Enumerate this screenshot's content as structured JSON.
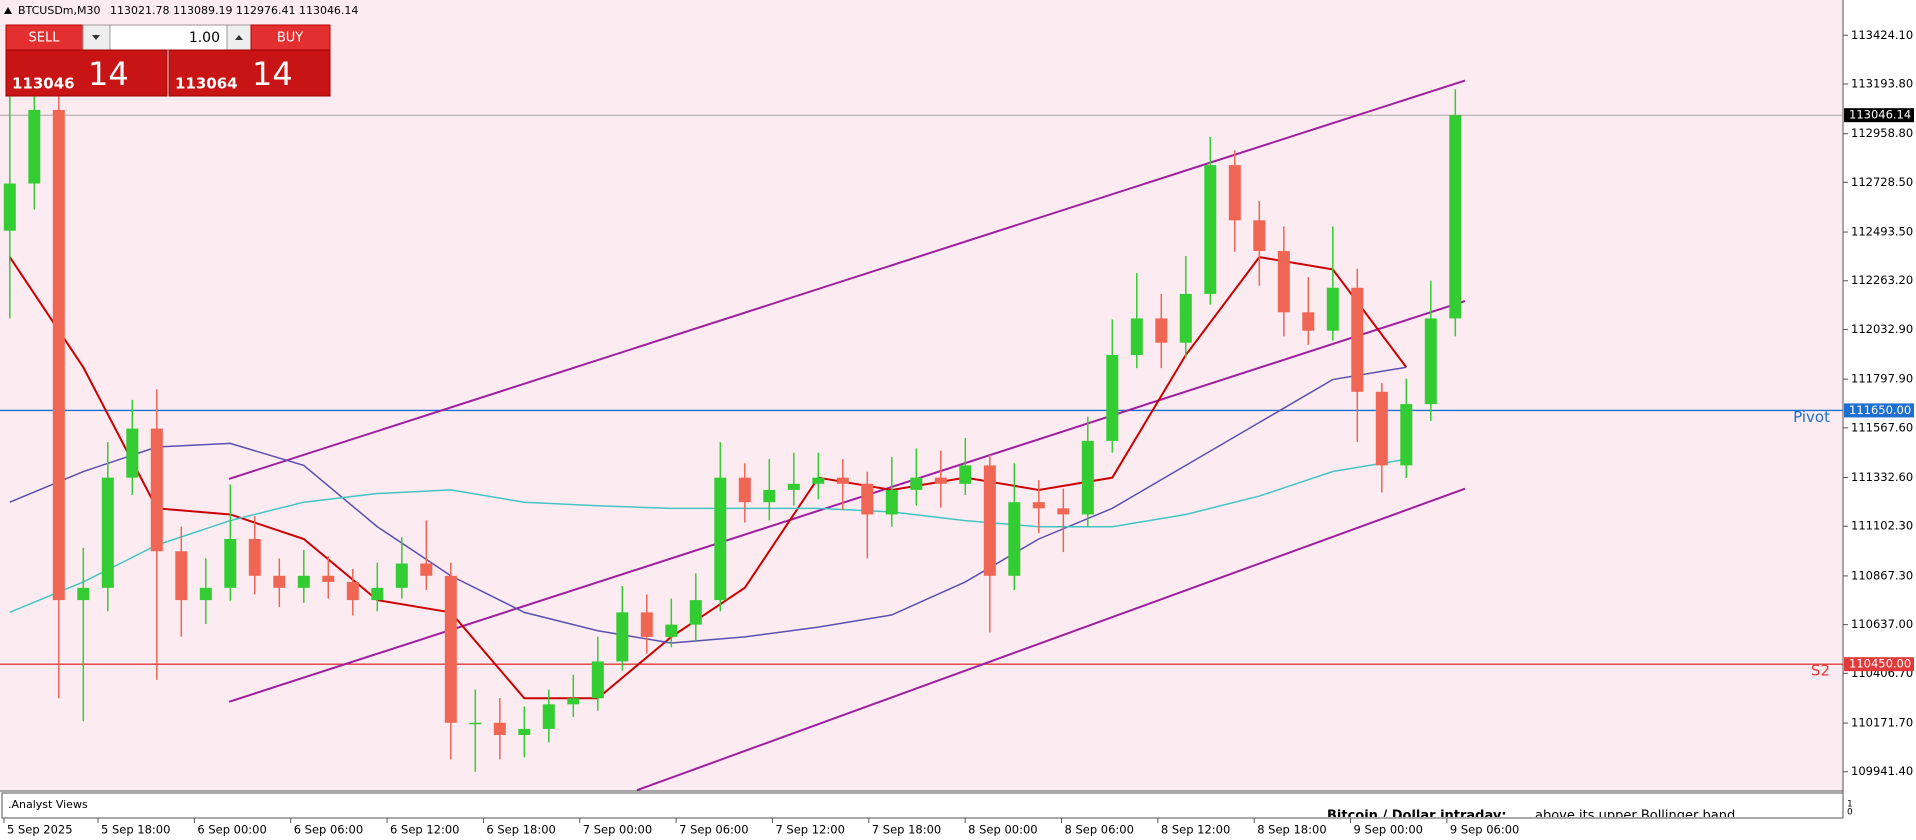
{
  "header": {
    "symbol": "BTCUSDm,M30",
    "quote": "113021.78 113089.19 112976.41 113046.14"
  },
  "trade_panel": {
    "sell": "SELL",
    "buy": "BUY",
    "lot": "1.00",
    "sell_price": "113046",
    "sell_pips": "14",
    "buy_price": "113064",
    "buy_pips": "14"
  },
  "chart_data": {
    "type": "candlestick",
    "background": "#fcecf1",
    "up_color": "#33cc33",
    "down_color": "#f06655",
    "x_labels": [
      "5 Sep 2025",
      "5 Sep 18:00",
      "6 Sep 00:00",
      "6 Sep 06:00",
      "6 Sep 12:00",
      "6 Sep 18:00",
      "7 Sep 00:00",
      "7 Sep 06:00",
      "7 Sep 12:00",
      "7 Sep 18:00",
      "8 Sep 00:00",
      "8 Sep 06:00",
      "8 Sep 12:00",
      "8 Sep 18:00",
      "9 Sep 00:00",
      "9 Sep 06:00"
    ],
    "ylim": [
      109855,
      113579
    ],
    "yticks": [
      {
        "value": 113424.1,
        "label": "113424.10"
      },
      {
        "value": 113193.8,
        "label": "113193.80"
      },
      {
        "value": 112958.8,
        "label": "112958.80"
      },
      {
        "value": 112728.5,
        "label": "112728.50"
      },
      {
        "value": 112493.5,
        "label": "112493.50"
      },
      {
        "value": 112263.2,
        "label": "112263.20"
      },
      {
        "value": 112032.9,
        "label": "112032.90"
      },
      {
        "value": 111797.9,
        "label": "111797.90"
      },
      {
        "value": 111567.6,
        "label": "111567.60"
      },
      {
        "value": 111332.6,
        "label": "111332.60"
      },
      {
        "value": 111102.3,
        "label": "111102.30"
      },
      {
        "value": 110867.3,
        "label": "110867.30"
      },
      {
        "value": 110637,
        "label": "110637.00"
      },
      {
        "value": 110406.7,
        "label": "110406.70"
      },
      {
        "value": 110171.7,
        "label": "110171.70"
      },
      {
        "value": 109941.4,
        "label": "109941.40"
      }
    ],
    "open": [
      112500,
      112723,
      113071,
      110753,
      110811,
      111332,
      111564,
      110984,
      110753,
      110811,
      111042,
      110868,
      110811,
      110868,
      110839,
      110753,
      110811,
      110926,
      110868,
      110173,
      110173,
      110115,
      110144,
      110260,
      110289,
      110463,
      110695,
      110579,
      110637,
      110753,
      111332,
      111216,
      111274,
      111303,
      111332,
      111303,
      111158,
      111274,
      111332,
      111303,
      111390,
      110868,
      111216,
      111187,
      111158,
      111506,
      111912,
      112085,
      111970,
      112201,
      112810,
      112549,
      112404,
      112114,
      112027,
      112230,
      111738,
      111390,
      111680,
      112085
    ],
    "high": [
      113180,
      113200,
      113150,
      111000,
      111500,
      111700,
      111750,
      111100,
      110950,
      111300,
      111150,
      110950,
      110990,
      110960,
      110900,
      110930,
      111050,
      111130,
      110930,
      110330,
      110290,
      110250,
      110330,
      110400,
      110580,
      110820,
      110780,
      110760,
      110880,
      111500,
      111400,
      111420,
      111450,
      111450,
      111420,
      111360,
      111430,
      111470,
      111460,
      111520,
      111440,
      111400,
      111320,
      111280,
      111620,
      112080,
      112300,
      112200,
      112380,
      112943,
      112880,
      112640,
      112520,
      112280,
      112520,
      112320,
      111780,
      111800,
      112263,
      113169
    ],
    "low": [
      112085,
      112600,
      110289,
      110180,
      110700,
      111250,
      110376,
      110580,
      110640,
      110750,
      110780,
      110720,
      110740,
      110760,
      110680,
      110700,
      110760,
      110800,
      110000,
      109941,
      110000,
      110010,
      110080,
      110200,
      110230,
      110420,
      110500,
      110530,
      110560,
      110700,
      111120,
      111130,
      111200,
      111230,
      111180,
      110950,
      111100,
      111200,
      111190,
      111250,
      110600,
      110800,
      111070,
      110980,
      111100,
      111450,
      111850,
      111850,
      111900,
      112150,
      112400,
      112240,
      112000,
      111960,
      111980,
      111500,
      111262,
      111330,
      111600,
      112000
    ],
    "close": [
      112723,
      113071,
      110753,
      110811,
      111332,
      111564,
      110984,
      110753,
      110811,
      111042,
      110868,
      110811,
      110868,
      110839,
      110753,
      110811,
      110926,
      110868,
      110173,
      110173,
      110115,
      110144,
      110260,
      110289,
      110463,
      110695,
      110579,
      110637,
      110753,
      111332,
      111216,
      111274,
      111303,
      111332,
      111303,
      111158,
      111274,
      111332,
      111303,
      111390,
      110868,
      111216,
      111187,
      111158,
      111506,
      111912,
      112085,
      111970,
      112201,
      112810,
      112549,
      112404,
      112114,
      112027,
      112230,
      111738,
      111390,
      111680,
      112085,
      113046.14
    ],
    "overlays": [
      {
        "color": "#cc0000",
        "values": [
          112375,
          111854,
          111187,
          111158,
          111042,
          110753,
          110695,
          110289,
          110289,
          110579,
          110811,
          111332,
          111274,
          111332,
          111274,
          111332,
          111912,
          112375,
          112317,
          111854
        ]
      },
      {
        "color": "#5a4fb0",
        "values": [
          111216,
          111361,
          111477,
          111494,
          111390,
          111100,
          110868,
          110695,
          110608,
          110550,
          110579,
          110625,
          110683,
          110839,
          111042,
          111187,
          111390,
          111593,
          111796,
          111854
        ]
      },
      {
        "color": "#45c4c4",
        "values": [
          110695,
          110839,
          111013,
          111129,
          111216,
          111257,
          111274,
          111216,
          111199,
          111187,
          111187,
          111187,
          111170,
          111129,
          111100,
          111100,
          111158,
          111245,
          111361,
          111419
        ]
      }
    ],
    "trendlines": [
      {
        "color": "#a01ea0",
        "start": 111326,
        "end": 113210
      },
      {
        "color": "#a01ea0",
        "start": 110272,
        "end": 112167
      },
      {
        "color": "#a01ea0",
        "start": 109854,
        "end": 111280
      }
    ],
    "levels": [
      {
        "name": "Pivot",
        "value": 111650,
        "label": "111650.00",
        "color": "#1e6fcf"
      },
      {
        "name": "S2",
        "value": 110450,
        "label": "110450.00",
        "color": "#e03a3a"
      }
    ],
    "last_price": {
      "value": 113046.14,
      "label": "113046.14",
      "color": "#999999"
    }
  },
  "panel": {
    "title": ".Analyst Views",
    "headline": "Bitcoin / Dollar intraday:",
    "text": "above its upper Bollinger band",
    "yticks": [
      1,
      0
    ]
  }
}
